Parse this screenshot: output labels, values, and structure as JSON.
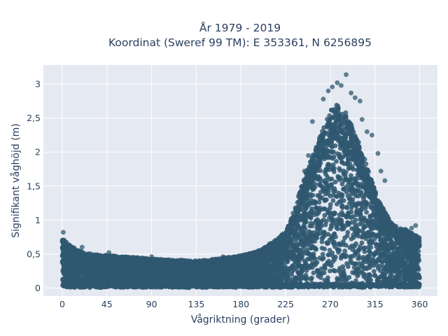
{
  "chart_data": {
    "type": "scatter",
    "title_lines": [
      "År 1979 - 2019",
      "Koordinat (Sweref 99 TM): E 353361, N 6256895"
    ],
    "xlabel": "Vågriktning (grader)",
    "ylabel": "Signifikant våghöjd (m)",
    "xlim": [
      -19,
      378
    ],
    "ylim": [
      -0.12,
      3.28
    ],
    "xticks": [
      0,
      45,
      90,
      135,
      180,
      225,
      270,
      315,
      360
    ],
    "xtick_labels": [
      "0",
      "45",
      "90",
      "135",
      "180",
      "225",
      "270",
      "315",
      "360"
    ],
    "yticks": [
      0,
      0.5,
      1,
      1.5,
      2,
      2.5,
      3
    ],
    "ytick_labels": [
      "0",
      "0,5",
      "1",
      "1,5",
      "2",
      "2,5",
      "3"
    ],
    "grid": true,
    "legend": "none",
    "marker_color": "#2f5870",
    "plot_background": "#e5e9f1",
    "envelope": {
      "x": [
        0,
        5,
        15,
        25,
        35,
        45,
        55,
        65,
        75,
        90,
        105,
        120,
        135,
        150,
        165,
        180,
        195,
        205,
        215,
        225,
        232,
        240,
        250,
        260,
        265,
        270,
        275,
        280,
        285,
        290,
        295,
        300,
        305,
        310,
        315,
        320,
        325,
        330,
        335,
        345,
        355,
        360
      ],
      "ymax": [
        0.72,
        0.65,
        0.55,
        0.5,
        0.48,
        0.47,
        0.46,
        0.45,
        0.44,
        0.42,
        0.41,
        0.4,
        0.39,
        0.41,
        0.44,
        0.47,
        0.52,
        0.6,
        0.7,
        0.82,
        1.05,
        1.45,
        1.85,
        2.2,
        2.42,
        2.55,
        2.65,
        2.62,
        2.55,
        2.42,
        2.25,
        2.05,
        1.85,
        1.65,
        1.42,
        1.25,
        1.1,
        0.98,
        0.9,
        0.85,
        0.78,
        0.72
      ]
    },
    "outliers": [
      {
        "x": 1,
        "y": 0.82
      },
      {
        "x": 268,
        "y": 2.9
      },
      {
        "x": 272,
        "y": 2.96
      },
      {
        "x": 277,
        "y": 3.02
      },
      {
        "x": 281,
        "y": 2.98
      },
      {
        "x": 286,
        "y": 3.14
      },
      {
        "x": 263,
        "y": 2.78
      },
      {
        "x": 291,
        "y": 2.87
      },
      {
        "x": 295,
        "y": 2.8
      },
      {
        "x": 300,
        "y": 2.75
      },
      {
        "x": 302,
        "y": 2.48
      },
      {
        "x": 307,
        "y": 2.3
      },
      {
        "x": 312,
        "y": 2.25
      },
      {
        "x": 318,
        "y": 1.98
      },
      {
        "x": 321,
        "y": 1.72
      },
      {
        "x": 325,
        "y": 1.58
      },
      {
        "x": 252,
        "y": 2.45
      },
      {
        "x": 248,
        "y": 1.95
      },
      {
        "x": 244,
        "y": 1.72
      },
      {
        "x": 356,
        "y": 0.92
      },
      {
        "x": 352,
        "y": 0.88
      },
      {
        "x": 20,
        "y": 0.6
      },
      {
        "x": 47,
        "y": 0.52
      },
      {
        "x": 90,
        "y": 0.46
      },
      {
        "x": 162,
        "y": 0.46
      }
    ]
  }
}
